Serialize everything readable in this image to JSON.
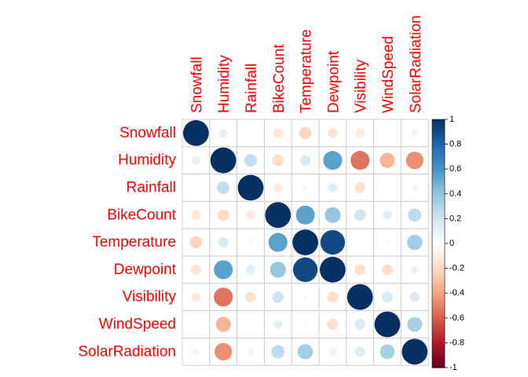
{
  "chart_data": {
    "type": "heatmap",
    "subtype": "correlation-matrix-circles",
    "variables": [
      "Snowfall",
      "Humidity",
      "Rainfall",
      "BikeCount",
      "Temperature",
      "Dewpoint",
      "Visibility",
      "WindSpeed",
      "SolarRadiation"
    ],
    "matrix": [
      [
        1.0,
        0.11,
        0.0,
        -0.14,
        -0.22,
        -0.15,
        -0.12,
        0.0,
        -0.07
      ],
      [
        0.11,
        1.0,
        0.24,
        -0.2,
        0.16,
        0.54,
        -0.54,
        -0.34,
        -0.46
      ],
      [
        0.0,
        0.24,
        1.0,
        -0.12,
        0.05,
        0.13,
        -0.17,
        0.0,
        -0.07
      ],
      [
        -0.14,
        -0.2,
        -0.12,
        1.0,
        0.54,
        0.38,
        0.2,
        0.12,
        0.26
      ],
      [
        -0.22,
        0.16,
        0.05,
        0.54,
        1.0,
        0.91,
        0.03,
        -0.04,
        0.35
      ],
      [
        -0.15,
        0.54,
        0.13,
        0.38,
        0.91,
        1.0,
        -0.18,
        -0.18,
        0.09
      ],
      [
        -0.12,
        -0.54,
        -0.17,
        0.2,
        0.03,
        -0.18,
        1.0,
        0.17,
        0.15
      ],
      [
        0.0,
        -0.34,
        0.0,
        0.12,
        -0.04,
        -0.18,
        0.17,
        1.0,
        0.33
      ],
      [
        -0.07,
        -0.46,
        -0.07,
        0.26,
        0.35,
        0.09,
        0.15,
        0.33,
        1.0
      ]
    ],
    "color_scale": {
      "min": -1,
      "max": 1,
      "ticks": [
        "1",
        "0.8",
        "0.6",
        "0.4",
        "0.2",
        "0",
        "-0.2",
        "-0.4",
        "-0.6",
        "-0.8",
        "-1"
      ],
      "stops": [
        "#67001F",
        "#B2182B",
        "#D6604D",
        "#F4A582",
        "#FDDBC7",
        "#FFFFFF",
        "#D1E5F0",
        "#92C5DE",
        "#4393C3",
        "#2166AC",
        "#053061"
      ],
      "legend_position": "right"
    },
    "label_color": "#ff0000",
    "grid": true
  }
}
